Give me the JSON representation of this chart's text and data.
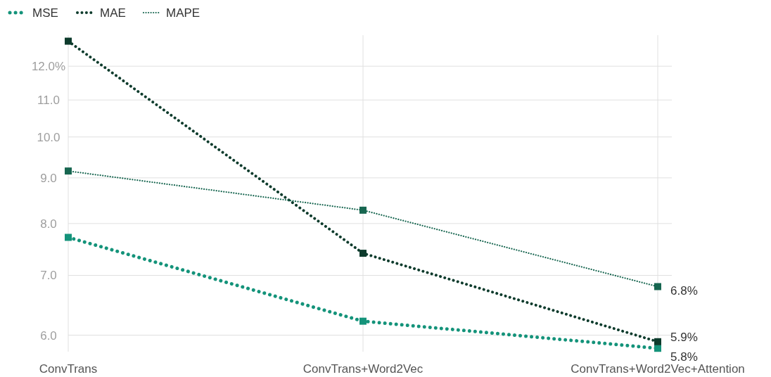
{
  "chart_data": {
    "type": "line",
    "categories": [
      "ConvTrans",
      "ConvTrans+Word2Vec",
      "ConvTrans+Word2Vec+Attention"
    ],
    "series": [
      {
        "name": "MSE",
        "color": "#14937a",
        "values": [
          7.72,
          6.22,
          5.8
        ],
        "value_labels": [
          null,
          null,
          "5.8%"
        ]
      },
      {
        "name": "MAE",
        "color": "#0d3b2c",
        "values": [
          12.8,
          7.41,
          5.9
        ],
        "value_labels": [
          null,
          null,
          "5.9%"
        ]
      },
      {
        "name": "MAPE",
        "color": "#176650",
        "values": [
          9.16,
          8.28,
          6.8
        ],
        "value_labels": [
          null,
          null,
          "6.8%"
        ]
      }
    ],
    "log": true,
    "ylim": [
      5.75,
      13.0
    ],
    "yticks": [
      {
        "value": 6,
        "label": "6.0"
      },
      {
        "value": 7,
        "label": "7.0"
      },
      {
        "value": 8,
        "label": "8.0"
      },
      {
        "value": 9,
        "label": "9.0"
      },
      {
        "value": 10,
        "label": "10.0"
      },
      {
        "value": 11,
        "label": "11.0"
      },
      {
        "value": 12,
        "label": "12.0%"
      }
    ],
    "grid": true,
    "legend": "top left",
    "marker": "square",
    "line_style": "dotted"
  }
}
